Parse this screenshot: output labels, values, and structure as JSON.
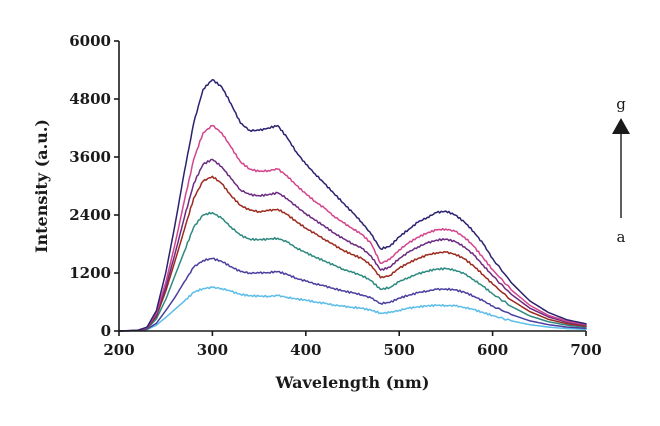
{
  "chart_data": {
    "type": "line",
    "title": "",
    "xlabel": "Wavelength (nm)",
    "ylabel": "Intensity (a.u.)",
    "xlim": [
      200,
      700
    ],
    "ylim": [
      0,
      6000
    ],
    "xticks": [
      200,
      300,
      400,
      500,
      600,
      700
    ],
    "yticks": [
      0,
      1200,
      2400,
      3600,
      4800,
      6000
    ],
    "ytick_labels": [
      "0",
      "1200",
      "2400",
      "3600",
      "4800",
      "6000"
    ],
    "xtick_labels": [
      "200",
      "300",
      "400",
      "500",
      "600",
      "700"
    ],
    "grid": false,
    "annotation": {
      "top_label": "g",
      "bottom_label": "a"
    },
    "x": [
      200,
      220,
      230,
      240,
      250,
      260,
      270,
      280,
      290,
      300,
      310,
      320,
      330,
      340,
      350,
      360,
      370,
      380,
      390,
      400,
      410,
      420,
      430,
      440,
      450,
      460,
      470,
      480,
      490,
      500,
      510,
      520,
      530,
      540,
      550,
      560,
      570,
      580,
      590,
      600,
      620,
      640,
      660,
      680,
      700
    ],
    "series": [
      {
        "color": "#5bbde8",
        "values": [
          0,
          5,
          30,
          120,
          280,
          450,
          620,
          800,
          880,
          900,
          880,
          820,
          760,
          730,
          720,
          720,
          730,
          700,
          660,
          640,
          600,
          570,
          540,
          510,
          490,
          470,
          430,
          370,
          380,
          430,
          470,
          500,
          520,
          530,
          530,
          520,
          490,
          440,
          380,
          320,
          210,
          130,
          80,
          50,
          35
        ]
      },
      {
        "color": "#4a3f9f",
        "values": [
          0,
          5,
          35,
          160,
          420,
          700,
          1020,
          1320,
          1460,
          1500,
          1440,
          1330,
          1230,
          1200,
          1200,
          1210,
          1230,
          1170,
          1090,
          1030,
          980,
          930,
          880,
          830,
          790,
          750,
          680,
          570,
          590,
          680,
          740,
          790,
          830,
          860,
          870,
          850,
          800,
          720,
          620,
          520,
          340,
          210,
          130,
          80,
          55
        ]
      },
      {
        "color": "#2e8a80",
        "values": [
          0,
          8,
          45,
          250,
          650,
          1150,
          1650,
          2150,
          2400,
          2450,
          2330,
          2150,
          1980,
          1900,
          1890,
          1900,
          1920,
          1840,
          1720,
          1620,
          1530,
          1450,
          1360,
          1280,
          1210,
          1150,
          1040,
          860,
          900,
          1020,
          1110,
          1180,
          1240,
          1280,
          1290,
          1260,
          1180,
          1060,
          920,
          770,
          510,
          310,
          190,
          120,
          80
        ]
      },
      {
        "color": "#9c2a1e",
        "values": [
          0,
          10,
          55,
          300,
          820,
          1450,
          2100,
          2750,
          3100,
          3200,
          3050,
          2800,
          2600,
          2500,
          2470,
          2490,
          2520,
          2410,
          2260,
          2130,
          2010,
          1900,
          1780,
          1670,
          1580,
          1500,
          1360,
          1100,
          1150,
          1300,
          1410,
          1500,
          1570,
          1620,
          1630,
          1590,
          1490,
          1340,
          1160,
          970,
          640,
          400,
          240,
          150,
          100
        ]
      },
      {
        "color": "#6a2a80",
        "values": [
          0,
          12,
          60,
          330,
          900,
          1600,
          2350,
          3050,
          3450,
          3550,
          3400,
          3150,
          2920,
          2820,
          2800,
          2820,
          2860,
          2740,
          2570,
          2430,
          2290,
          2170,
          2030,
          1910,
          1810,
          1710,
          1550,
          1260,
          1320,
          1500,
          1630,
          1740,
          1820,
          1880,
          1900,
          1850,
          1740,
          1570,
          1360,
          1140,
          760,
          470,
          290,
          180,
          120
        ]
      },
      {
        "color": "#d2458e",
        "values": [
          0,
          14,
          70,
          370,
          1000,
          1800,
          2700,
          3550,
          4100,
          4250,
          4100,
          3800,
          3500,
          3350,
          3300,
          3320,
          3350,
          3210,
          3010,
          2840,
          2680,
          2540,
          2380,
          2240,
          2120,
          2000,
          1810,
          1400,
          1480,
          1680,
          1820,
          1940,
          2030,
          2090,
          2110,
          2060,
          1940,
          1750,
          1510,
          1270,
          850,
          530,
          320,
          200,
          130
        ]
      },
      {
        "color": "#2a2270",
        "values": [
          0,
          15,
          80,
          420,
          1200,
          2200,
          3300,
          4300,
          5000,
          5200,
          5050,
          4700,
          4300,
          4150,
          4150,
          4200,
          4250,
          4000,
          3700,
          3450,
          3250,
          3050,
          2850,
          2650,
          2450,
          2250,
          2000,
          1700,
          1750,
          1950,
          2100,
          2250,
          2350,
          2450,
          2480,
          2400,
          2250,
          2050,
          1800,
          1500,
          1000,
          620,
          380,
          230,
          150
        ]
      }
    ]
  }
}
